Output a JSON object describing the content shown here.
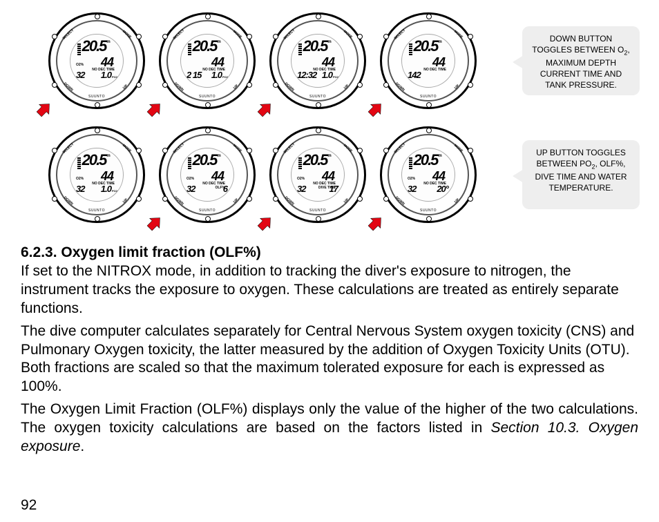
{
  "figure": {
    "watch_common": {
      "depth": "20.5",
      "depth_unit": "m",
      "ac": "AC",
      "mid": "44",
      "nodec": "NO DEC TIME",
      "o2_label": "O2%",
      "o2_val": "32",
      "brand": "SUUNTO",
      "buttons": {
        "select": "SELECT",
        "mode": "MODE",
        "down": "DOWN",
        "up": "UP"
      }
    },
    "row1": [
      {
        "bot_right": "1.0",
        "bot_label": "PO2",
        "nodec2": ""
      },
      {
        "bot_left_override": "2 15",
        "bot_right": "1.0",
        "bot_label": "PO2",
        "nodec2": ""
      },
      {
        "bot_left_override": "12:32",
        "bot_right": "1.0",
        "bot_label": "PO2",
        "nodec2": ""
      },
      {
        "bot_left_override": "142",
        "bot_right": "",
        "bot_label": "",
        "nodec2": ""
      }
    ],
    "row2": [
      {
        "bot_right": "1.0",
        "bot_label": "PO2",
        "nodec2": ""
      },
      {
        "bot_right": "6",
        "bot_label": "",
        "nodec2": "OLF%"
      },
      {
        "bot_right": "17",
        "bot_label": "",
        "nodec2": "DIVE TIME"
      },
      {
        "bot_right": "20°",
        "bot_label": "",
        "nodec2": ""
      }
    ],
    "callout1_lines": [
      "DOWN BUTTON",
      "TOGGLES BETWEEN",
      "O",
      ", MAXIMUM DEPTH",
      "CURRENT TIME AND",
      "TANK PRESSURE."
    ],
    "callout2_lines": [
      "UP BUTTON",
      "TOGGLES BETWEEN",
      "PO",
      ", OLF%, DIVE",
      "TIME AND WATER",
      "TEMPERATURE."
    ],
    "arrow_color": "#e30613"
  },
  "text": {
    "heading": "6.2.3. Oxygen limit fraction (OLF%)",
    "p1": "If set to the NITROX mode, in addition to tracking the diver's exposure to nitrogen, the instrument tracks the exposure to oxygen. These calculations are treated as entirely separate functions.",
    "p2": "The dive computer calculates separately for Central Nervous System oxygen toxicity (CNS) and Pulmonary Oxygen toxicity, the latter measured by the addition of Oxygen Toxicity Units (OTU). Both fractions are scaled so that the maximum tolerated exposure for each is expressed as 100%.",
    "p3a": "The Oxygen Limit Fraction (OLF%) displays only the value of the higher of the two calculations. The oxygen toxicity calculations are based on the factors listed in ",
    "p3b": "Section 10.3. Oxygen exposure",
    "p3c": ".",
    "page": "92"
  }
}
